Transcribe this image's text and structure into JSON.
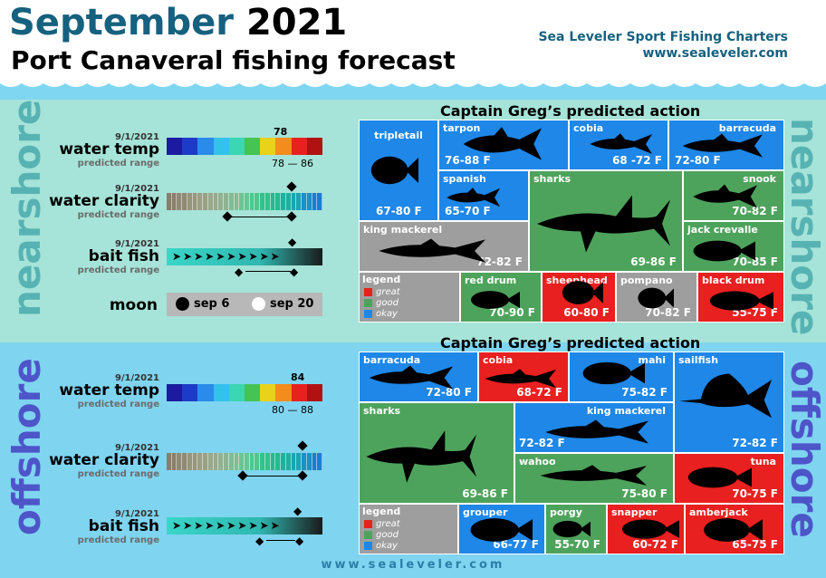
{
  "header": {
    "title_month": "September",
    "title_year": "2021",
    "subtitle": "Port Canaveral fishing forecast",
    "brand_name": "Sea Leveler Sport Fishing Charters",
    "brand_url": "www.sealeveler.com"
  },
  "colors": {
    "great": "#e8201f",
    "good": "#4ea35c",
    "okay": "#1e87e8",
    "none": "#9e9e9e",
    "nearshore_bg": "#a6e3d8",
    "offshore_bg": "#7fd4f0",
    "title_blue": "#15617f",
    "side_text": "#57b3b3",
    "offshore_side": "#4d55c9"
  },
  "nearshore": {
    "side_label": "nearshore",
    "water_temp": {
      "date": "9/1/2021",
      "label": "water temp",
      "range_label": "predicted range",
      "value": "78",
      "range_low": "78",
      "range_dash": "—",
      "range_high": "86"
    },
    "water_clarity": {
      "date": "9/1/2021",
      "label": "water clarity",
      "range_label": "predicted range"
    },
    "bait_fish": {
      "date": "9/1/2021",
      "label": "bait fish",
      "range_label": "predicted range"
    },
    "moon": {
      "label": "moon",
      "new": "sep 6",
      "full": "sep 20"
    },
    "section_title": "Captain Greg’s predicted action",
    "legend": {
      "title": "legend",
      "great": "great",
      "good": "good",
      "okay": "okay"
    },
    "species": [
      {
        "name": "tripletail",
        "temp": "67-80 F",
        "rating": "okay"
      },
      {
        "name": "tarpon",
        "temp": "76-88 F",
        "rating": "okay"
      },
      {
        "name": "cobia",
        "temp": "68 -72 F",
        "rating": "okay"
      },
      {
        "name": "barracuda",
        "temp": "72-80 F",
        "rating": "okay"
      },
      {
        "name": "spanish",
        "temp": "65-70 F",
        "rating": "okay"
      },
      {
        "name": "sharks",
        "temp": "69-86 F",
        "rating": "good"
      },
      {
        "name": "snook",
        "temp": "70-82 F",
        "rating": "good"
      },
      {
        "name": "king mackerel",
        "temp": "72-82 F",
        "rating": "none"
      },
      {
        "name": "jack crevalle",
        "temp": "70-85 F",
        "rating": "good"
      },
      {
        "name": "red drum",
        "temp": "70-90 F",
        "rating": "good"
      },
      {
        "name": "sheephead",
        "temp": "60-80 F",
        "rating": "great"
      },
      {
        "name": "pompano",
        "temp": "70-82 F",
        "rating": "none"
      },
      {
        "name": "black drum",
        "temp": "55-75 F",
        "rating": "great"
      }
    ]
  },
  "offshore": {
    "side_label": "offshore",
    "water_temp": {
      "date": "9/1/2021",
      "label": "water temp",
      "range_label": "predicted range",
      "value": "84",
      "range_low": "80",
      "range_dash": "—",
      "range_high": "88"
    },
    "water_clarity": {
      "date": "9/1/2021",
      "label": "water clarity",
      "range_label": "predicted range"
    },
    "bait_fish": {
      "date": "9/1/2021",
      "label": "bait fish",
      "range_label": "predicted range"
    },
    "section_title": "Captain Greg’s predicted action",
    "legend": {
      "title": "legend",
      "great": "great",
      "good": "good",
      "okay": "okay"
    },
    "species": [
      {
        "name": "barracuda",
        "temp": "72-80 F",
        "rating": "okay"
      },
      {
        "name": "cobia",
        "temp": "68-72 F",
        "rating": "great"
      },
      {
        "name": "mahi",
        "temp": "75-82 F",
        "rating": "okay"
      },
      {
        "name": "sailfish",
        "temp": "72-82 F",
        "rating": "okay"
      },
      {
        "name": "sharks",
        "temp": "69-86 F",
        "rating": "good"
      },
      {
        "name": "king mackerel",
        "temp": "72-82 F",
        "rating": "okay"
      },
      {
        "name": "wahoo",
        "temp": "75-80 F",
        "rating": "good"
      },
      {
        "name": "tuna",
        "temp": "70-75 F",
        "rating": "great"
      },
      {
        "name": "grouper",
        "temp": "66-77 F",
        "rating": "okay"
      },
      {
        "name": "porgy",
        "temp": "55-70 F",
        "rating": "good"
      },
      {
        "name": "snapper",
        "temp": "60-72 F",
        "rating": "great"
      },
      {
        "name": "amberjack",
        "temp": "65-75 F",
        "rating": "great"
      }
    ]
  },
  "footer": {
    "url": "www.sealeveler.com"
  }
}
